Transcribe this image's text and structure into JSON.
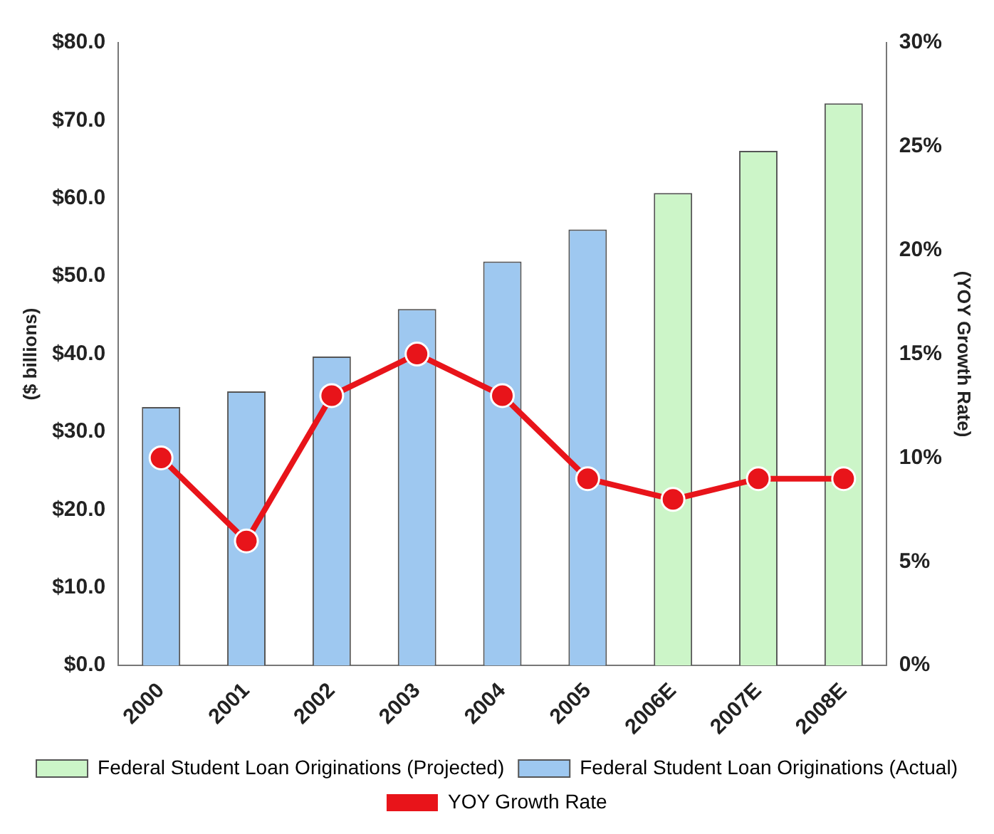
{
  "chart_data": {
    "type": "bar",
    "categories": [
      "2000",
      "2001",
      "2002",
      "2003",
      "2004",
      "2005",
      "2006E",
      "2007E",
      "2008E"
    ],
    "series": [
      {
        "name": "Federal Student Loan Originations (Projected)",
        "color": "#ccf5c8",
        "values": [
          null,
          null,
          null,
          null,
          null,
          null,
          60.7,
          66.1,
          72.2
        ]
      },
      {
        "name": "Federal Student Loan Originations (Actual)",
        "color": "#9ec8f0",
        "values": [
          33.2,
          35.2,
          39.7,
          45.8,
          51.9,
          56.0,
          null,
          null,
          null
        ]
      },
      {
        "name": "YOY Growth Rate",
        "type": "line",
        "axis": "y2",
        "color": "#e8141a",
        "marker": "circle",
        "values": [
          10,
          6,
          13,
          15,
          13,
          9,
          8,
          9,
          9
        ]
      }
    ],
    "ylabel": "($ billions)",
    "y2label": "(YOY Growth Rate)",
    "ylim": [
      0,
      80
    ],
    "yticks": [
      {
        "value": 0,
        "label": "$0.0"
      },
      {
        "value": 10,
        "label": "$10.0"
      },
      {
        "value": 20,
        "label": "$20.0"
      },
      {
        "value": 30,
        "label": "$30.0"
      },
      {
        "value": 40,
        "label": "$40.0"
      },
      {
        "value": 50,
        "label": "$50.0"
      },
      {
        "value": 60,
        "label": "$60.0"
      },
      {
        "value": 70,
        "label": "$70.0"
      },
      {
        "value": 80,
        "label": "$80.0"
      }
    ],
    "y2lim": [
      0,
      30
    ],
    "y2ticks": [
      {
        "value": 0,
        "label": "0%"
      },
      {
        "value": 5,
        "label": "5%"
      },
      {
        "value": 10,
        "label": "10%"
      },
      {
        "value": 15,
        "label": "15%"
      },
      {
        "value": 20,
        "label": "20%"
      },
      {
        "value": 25,
        "label": "25%"
      },
      {
        "value": 30,
        "label": "30%"
      }
    ],
    "grid": false,
    "legend": "bottom"
  }
}
